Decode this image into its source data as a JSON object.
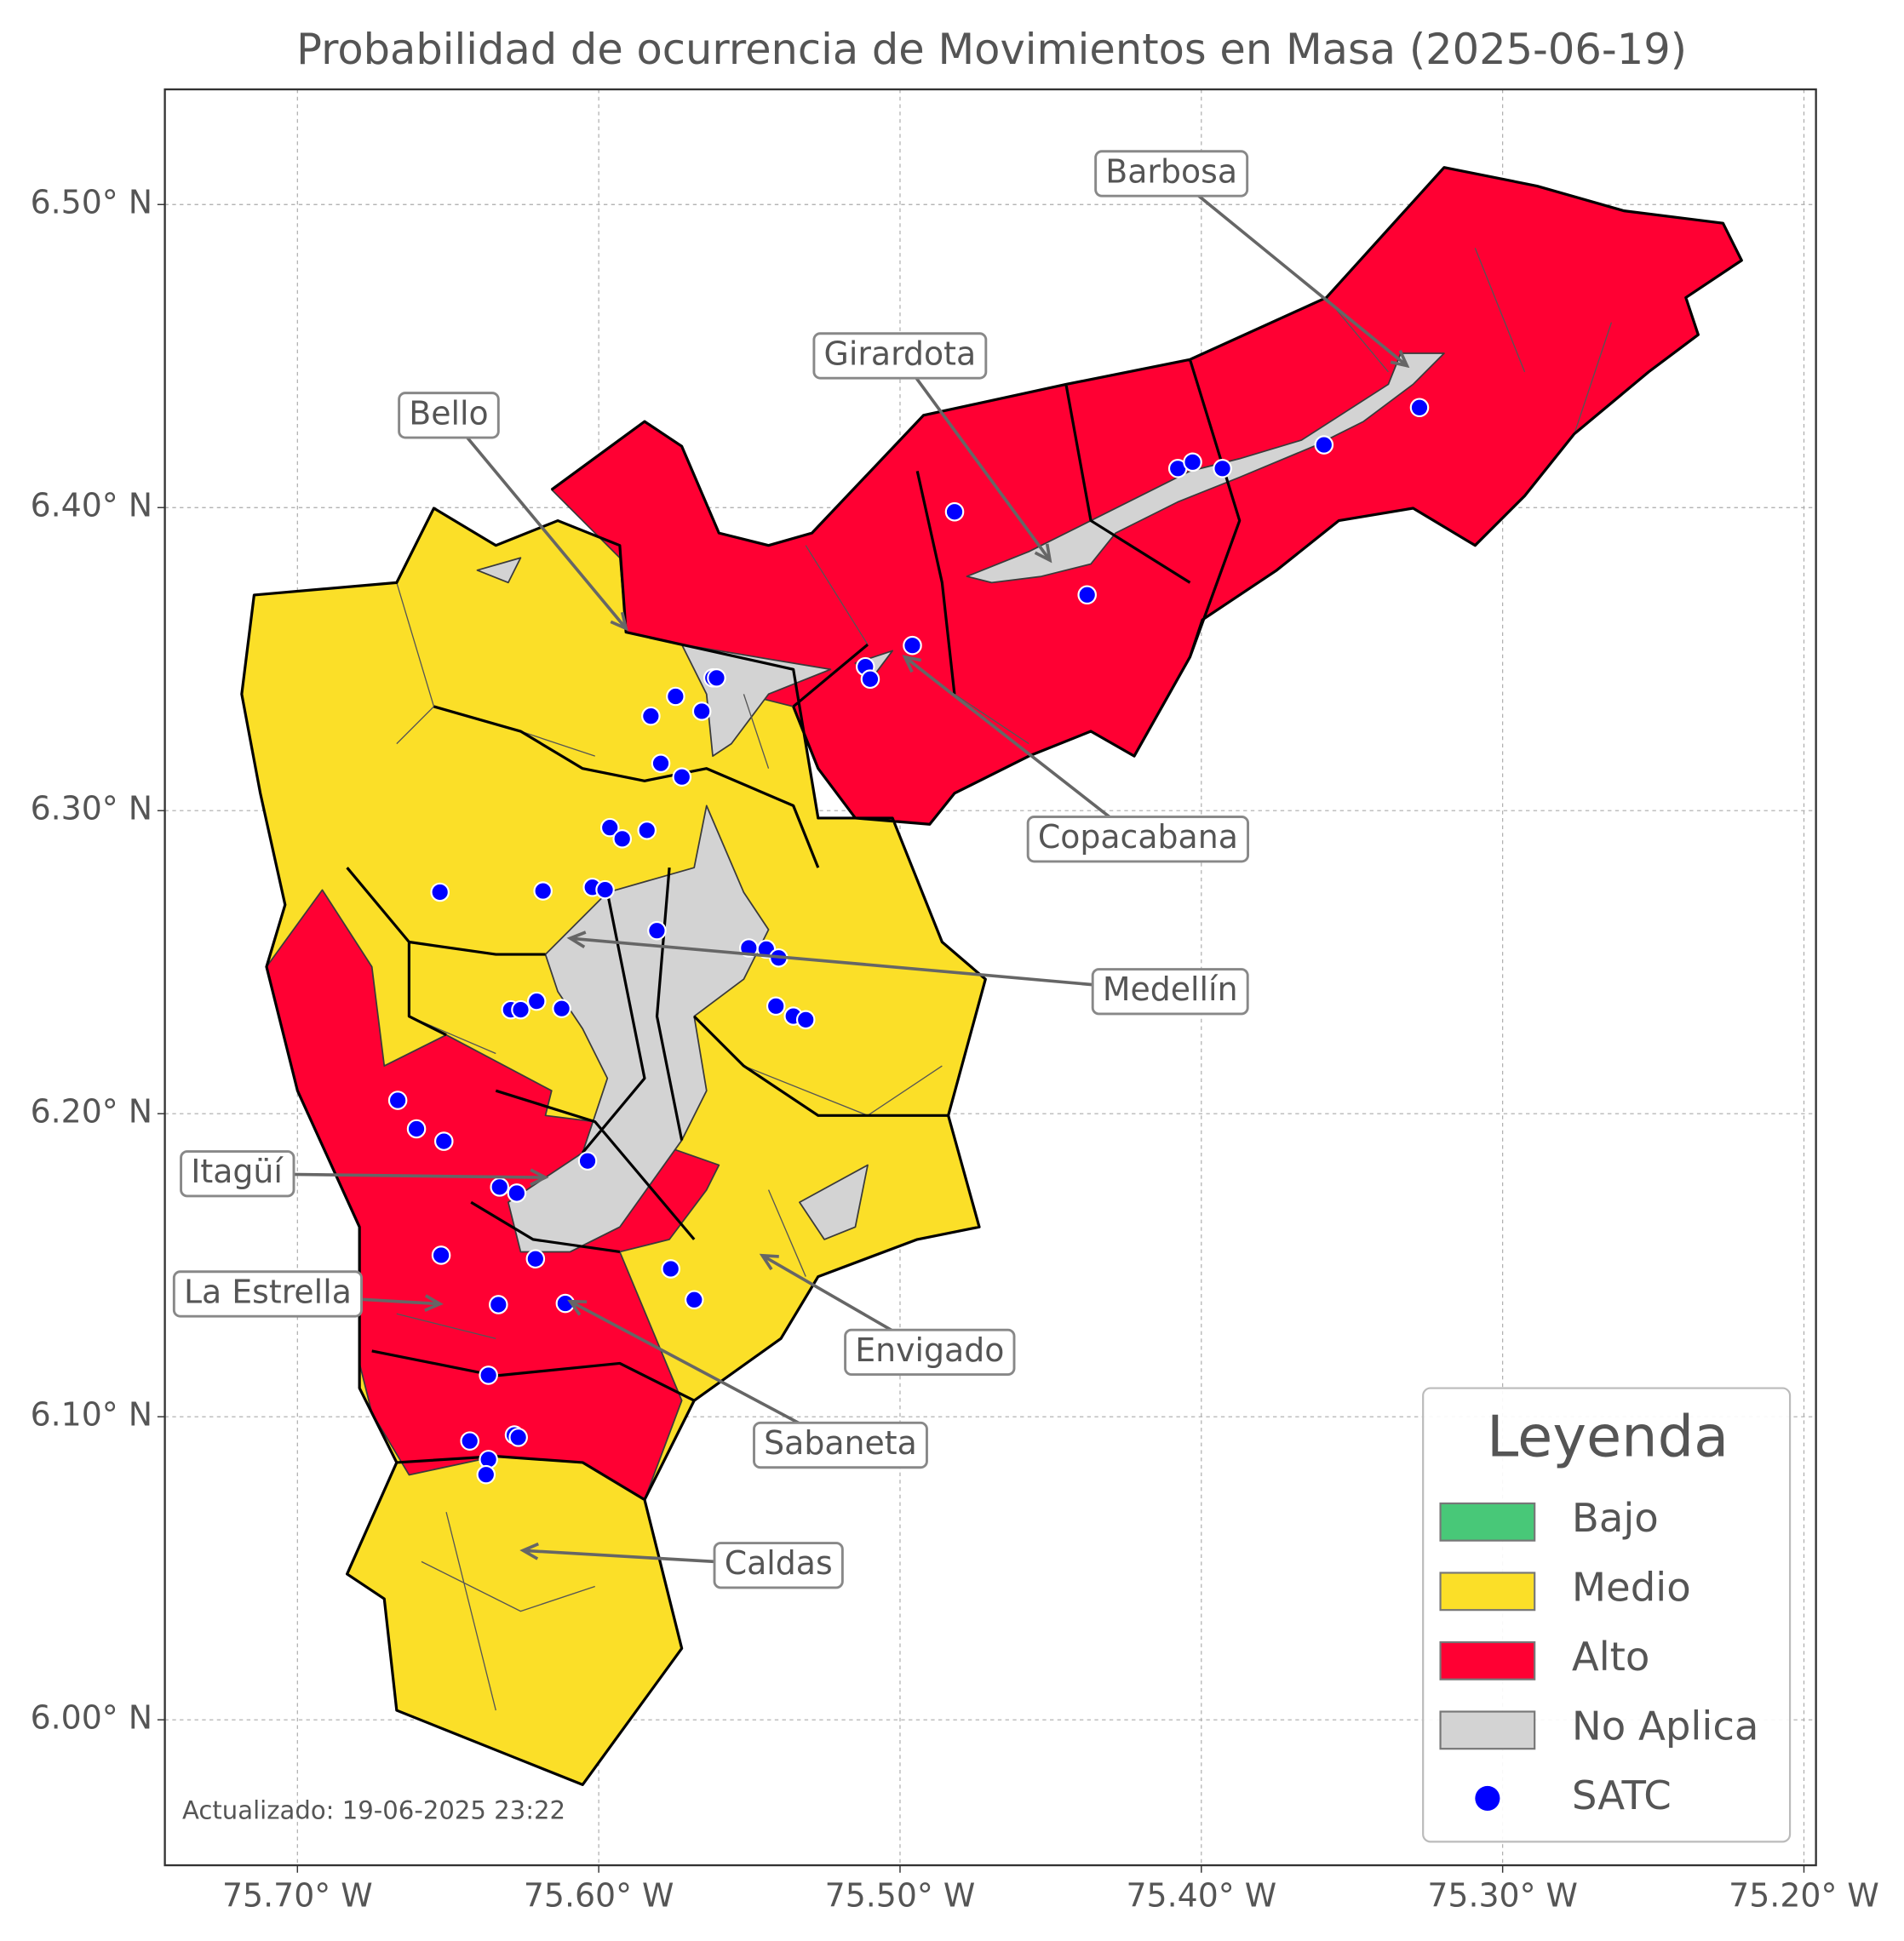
{
  "chart_data": {
    "type": "map",
    "title": "Probabilidad de ocurrencia de Movimientos en Masa (2025-06-19)",
    "xlim": [
      -75.744,
      -75.196
    ],
    "ylim": [
      5.952,
      6.538
    ],
    "xticks": [
      {
        "value": -75.7,
        "label": "75.70° W"
      },
      {
        "value": -75.6,
        "label": "75.60° W"
      },
      {
        "value": -75.5,
        "label": "75.50° W"
      },
      {
        "value": -75.4,
        "label": "75.40° W"
      },
      {
        "value": -75.3,
        "label": "75.30° W"
      },
      {
        "value": -75.2,
        "label": "75.20° W"
      }
    ],
    "yticks": [
      {
        "value": 6.0,
        "label": "6.00° N"
      },
      {
        "value": 6.1,
        "label": "6.10° N"
      },
      {
        "value": 6.2,
        "label": "6.20° N"
      },
      {
        "value": 6.3,
        "label": "6.30° N"
      },
      {
        "value": 6.4,
        "label": "6.40° N"
      },
      {
        "value": 6.5,
        "label": "6.50° N"
      }
    ],
    "grid": true,
    "legend": {
      "title": "Leyenda",
      "position": "lower right",
      "categories": [
        {
          "name": "Bajo",
          "color": "#48c878"
        },
        {
          "name": "Medio",
          "color": "#fbdf28"
        },
        {
          "name": "Alto",
          "color": "#ff0033"
        },
        {
          "name": "No Aplica",
          "color": "#d3d3d3"
        }
      ]
    },
    "series": [
      {
        "name": "SATC",
        "color": "#0000ff",
        "x": [
          -75.4819,
          -75.4078,
          -75.4029,
          -75.393,
          -75.3593,
          -75.3276,
          -75.4379,
          -75.4959,
          -75.5115,
          -75.5099,
          -75.5621,
          -75.5609,
          -75.5745,
          -75.5658,
          -75.5827,
          -75.5794,
          -75.5724,
          -75.5963,
          -75.5922,
          -75.584,
          -75.6527,
          -75.6185,
          -75.6021,
          -75.5979,
          -75.5807,
          -75.5502,
          -75.5444,
          -75.5403,
          -75.5412,
          -75.5354,
          -75.5313,
          -75.6206,
          -75.6123,
          -75.6292,
          -75.6259,
          -75.6667,
          -75.6605,
          -75.6514,
          -75.6037,
          -75.6329,
          -75.6272,
          -75.6523,
          -75.621,
          -75.5761,
          -75.5683,
          -75.6333,
          -75.6111,
          -75.6366,
          -75.6428,
          -75.628,
          -75.6267,
          -75.6366,
          -75.6374
        ],
        "y": [
          6.3986,
          6.4129,
          6.415,
          6.4129,
          6.4207,
          6.433,
          6.3712,
          6.3545,
          6.3475,
          6.3434,
          6.3438,
          6.3438,
          6.3377,
          6.3328,
          6.3312,
          6.3156,
          6.3111,
          6.2944,
          6.2907,
          6.2935,
          6.2731,
          6.2735,
          6.2747,
          6.2739,
          6.2604,
          6.2547,
          6.2543,
          6.2514,
          6.2355,
          6.2322,
          6.231,
          6.2371,
          6.2347,
          6.2343,
          6.2343,
          6.2044,
          6.195,
          6.1909,
          6.1844,
          6.1758,
          6.1738,
          6.1533,
          6.1521,
          6.1488,
          6.1386,
          6.137,
          6.1374,
          6.1137,
          6.092,
          6.094,
          6.0932,
          6.0859,
          6.0809
        ]
      }
    ],
    "annotations": [
      {
        "text": "Barbosa"
      },
      {
        "text": "Girardota"
      },
      {
        "text": "Bello"
      },
      {
        "text": "Copacabana"
      },
      {
        "text": "Medellín"
      },
      {
        "text": "Itagüí"
      },
      {
        "text": "La Estrella"
      },
      {
        "text": "Envigado"
      },
      {
        "text": "Sabaneta"
      },
      {
        "text": "Caldas"
      }
    ],
    "footnote": "Actualizado: 19-06-2025 23:22"
  }
}
